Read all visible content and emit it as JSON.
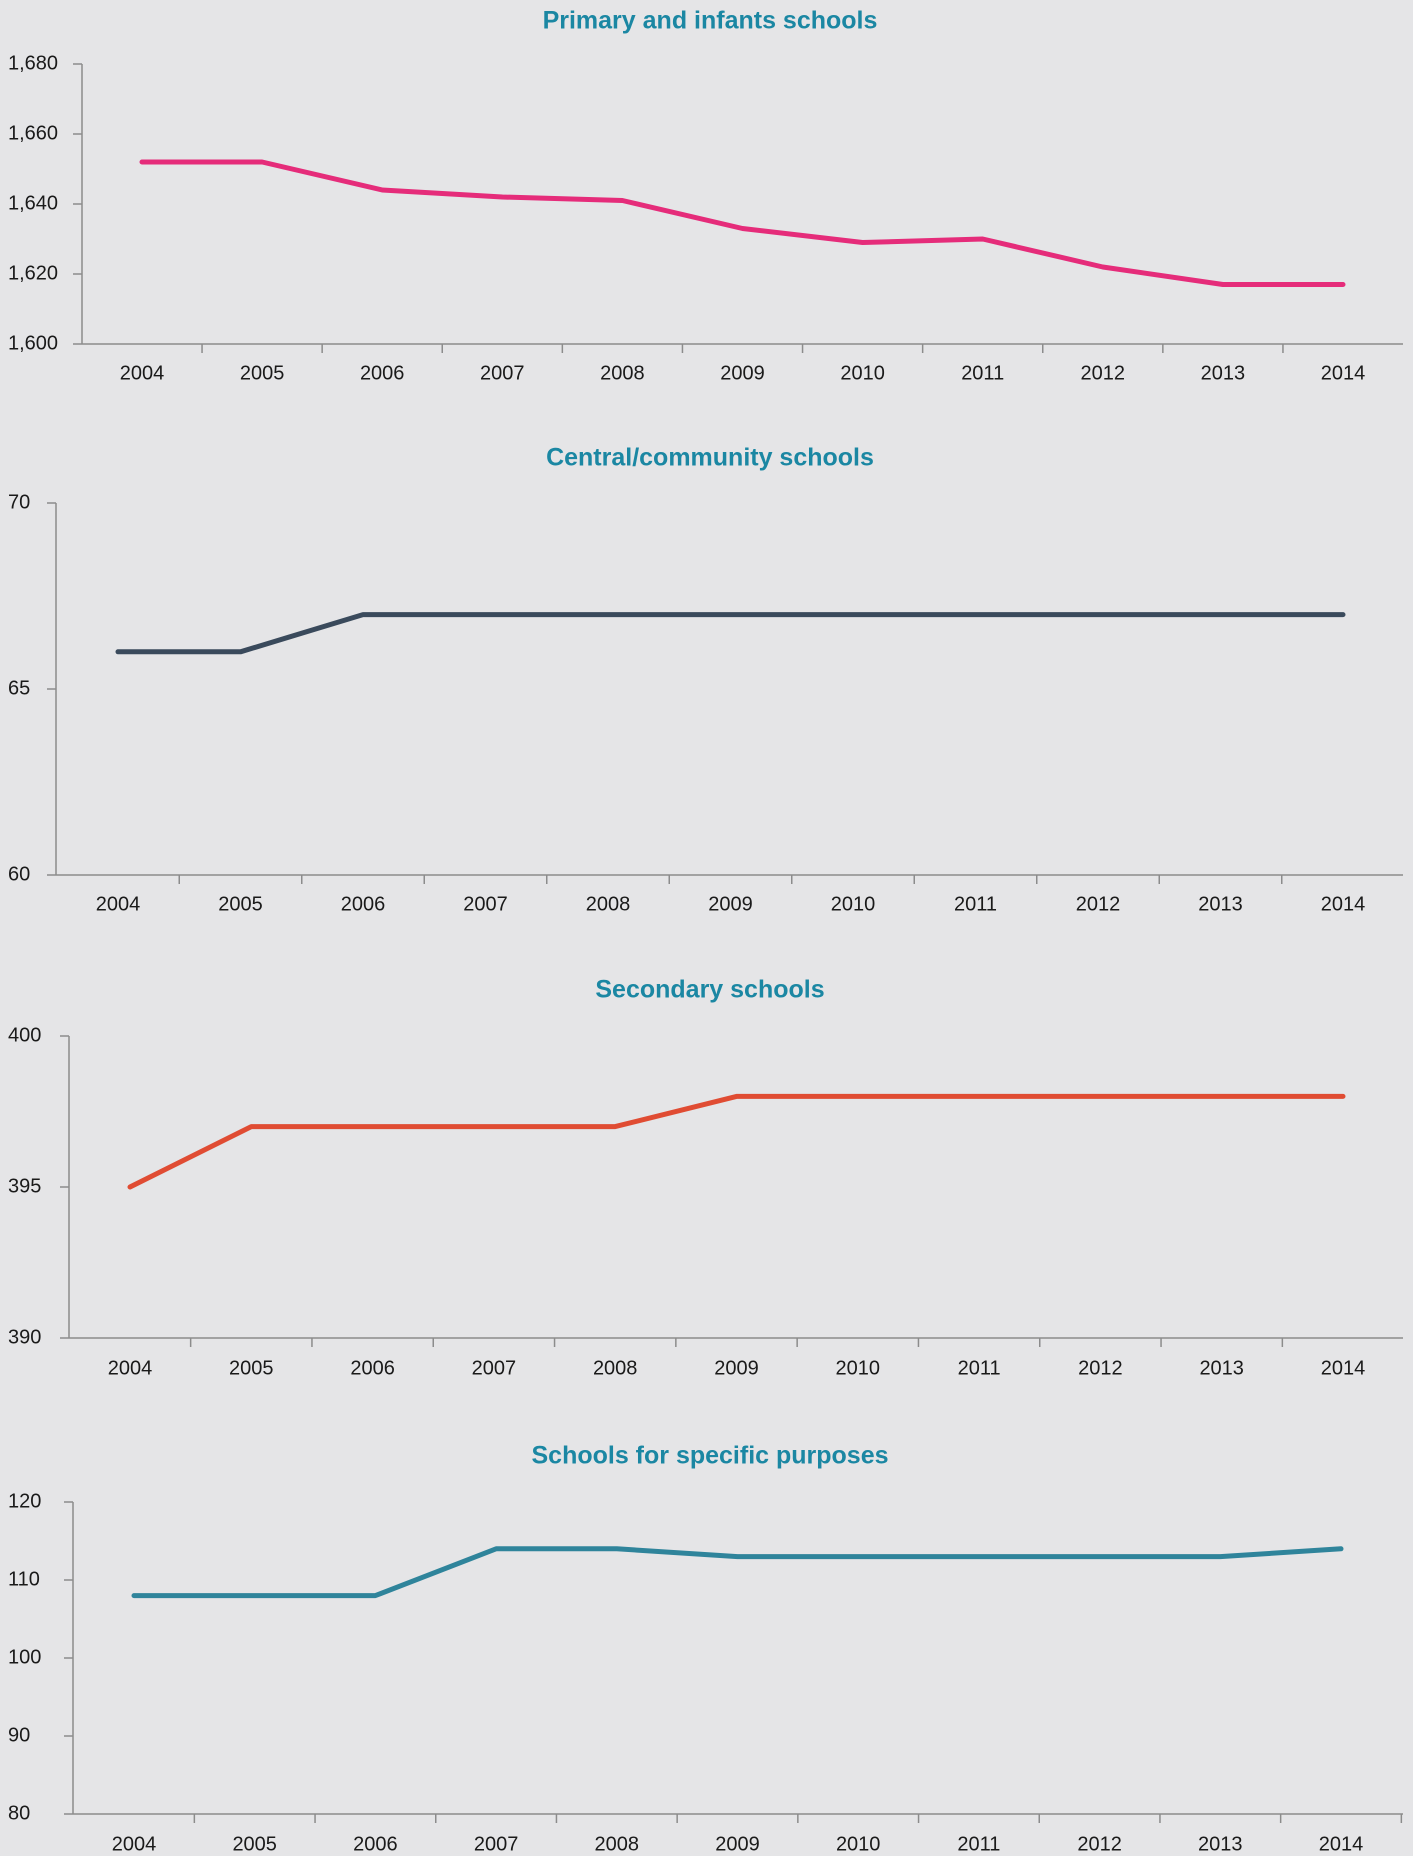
{
  "chart_data": [
    {
      "type": "line",
      "title": "Primary and infants schools",
      "categories": [
        "2004",
        "2005",
        "2006",
        "2007",
        "2008",
        "2009",
        "2010",
        "2011",
        "2012",
        "2013",
        "2014"
      ],
      "ylim": [
        1600,
        1680
      ],
      "yticks": [
        "1,600",
        "1,620",
        "1,640",
        "1,660",
        "1,680"
      ],
      "ytick_values": [
        1600,
        1620,
        1640,
        1660,
        1680
      ],
      "series": [
        {
          "values": [
            1652,
            1652,
            1644,
            1642,
            1641,
            1633,
            1629,
            1630,
            1622,
            1617,
            1617
          ],
          "color": "#e52c7a"
        }
      ],
      "grid": false
    },
    {
      "type": "line",
      "title": "Central/community schools",
      "categories": [
        "2004",
        "2005",
        "2006",
        "2007",
        "2008",
        "2009",
        "2010",
        "2011",
        "2012",
        "2013",
        "2014"
      ],
      "ylim": [
        60,
        70
      ],
      "yticks": [
        "60",
        "65",
        "70"
      ],
      "ytick_values": [
        60,
        65,
        70
      ],
      "series": [
        {
          "values": [
            66,
            66,
            67,
            67,
            67,
            67,
            67,
            67,
            67,
            67,
            67
          ],
          "color": "#3a4a5c"
        }
      ],
      "grid": false
    },
    {
      "type": "line",
      "title": "Secondary schools",
      "categories": [
        "2004",
        "2005",
        "2006",
        "2007",
        "2008",
        "2009",
        "2010",
        "2011",
        "2012",
        "2013",
        "2014"
      ],
      "ylim": [
        390,
        400
      ],
      "yticks": [
        "390",
        "395",
        "400"
      ],
      "ytick_values": [
        390,
        395,
        400
      ],
      "series": [
        {
          "values": [
            395,
            397,
            397,
            397,
            397,
            398,
            398,
            398,
            398,
            398,
            398
          ],
          "color": "#e04c33"
        }
      ],
      "grid": false
    },
    {
      "type": "line",
      "title": "Schools for specific purposes",
      "categories": [
        "2004",
        "2005",
        "2006",
        "2007",
        "2008",
        "2009",
        "2010",
        "2011",
        "2012",
        "2013",
        "2014"
      ],
      "ylim": [
        80,
        120
      ],
      "yticks": [
        "80",
        "90",
        "100",
        "110",
        "120"
      ],
      "ytick_values": [
        80,
        90,
        100,
        110,
        120
      ],
      "series": [
        {
          "values": [
            108,
            108,
            108,
            114,
            114,
            113,
            113,
            113,
            113,
            113,
            114
          ],
          "color": "#2f849b"
        }
      ],
      "grid": false
    }
  ]
}
